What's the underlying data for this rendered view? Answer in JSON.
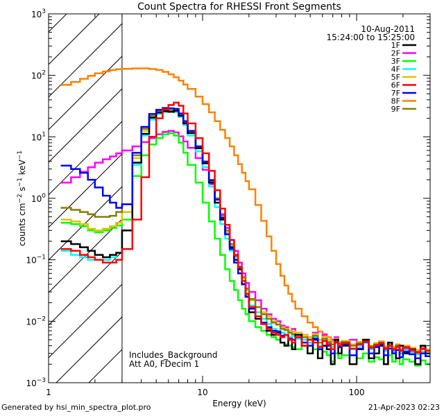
{
  "chart_data": {
    "type": "line",
    "title": "Count Spectra for RHESSI Front Segments",
    "xlabel": "Energy (keV)",
    "ylabel": "counts cm-2 s-1 keV-1",
    "ylabel_parts": [
      "counts cm",
      "−2",
      " s",
      "−1",
      " keV",
      "−1"
    ],
    "xscale": "log",
    "yscale": "log",
    "xlim": [
      1,
      300
    ],
    "ylim": [
      0.001,
      1000
    ],
    "xticks": [
      {
        "value": 1,
        "label": "1"
      },
      {
        "value": 10,
        "label": "10"
      },
      {
        "value": 100,
        "label": "100"
      }
    ],
    "yticks": [
      {
        "value": 0.001,
        "base": "10",
        "exp": "−3"
      },
      {
        "value": 0.01,
        "base": "10",
        "exp": "−2"
      },
      {
        "value": 0.1,
        "base": "10",
        "exp": "−1"
      },
      {
        "value": 1,
        "base": "10",
        "exp": "0"
      },
      {
        "value": 10,
        "base": "10",
        "exp": "1"
      },
      {
        "value": 100,
        "base": "10",
        "exp": "2"
      },
      {
        "value": 1000,
        "base": "10",
        "exp": "3"
      }
    ],
    "hatched_region": {
      "x_max": 3
    },
    "annotations": {
      "date": "10-Aug-2011",
      "time_range": "15:24:00 to 15:25:00",
      "note_background": "Includes_Background",
      "note_attenuator": "Att A0, FDecim 1"
    },
    "energy_bins": [
      1.2,
      1.4,
      1.6,
      1.8,
      2.0,
      2.25,
      2.5,
      2.75,
      3.0,
      3.5,
      4.0,
      4.5,
      5.0,
      5.5,
      6.0,
      6.5,
      7.0,
      7.5,
      8.0,
      9.0,
      10,
      11,
      12,
      13,
      14,
      15,
      16,
      17,
      18,
      19,
      20,
      22,
      24,
      26,
      28,
      30,
      32,
      34,
      36,
      38,
      40,
      44,
      48,
      52,
      56,
      60,
      64,
      68,
      72,
      76,
      80,
      90,
      100,
      110,
      120,
      130,
      140,
      150,
      160,
      170,
      180,
      190,
      200,
      220,
      240,
      260,
      280,
      300
    ],
    "series": [
      {
        "name": "1F",
        "color": "#000000",
        "values": [
          0.2,
          0.18,
          0.16,
          0.14,
          0.12,
          0.11,
          0.12,
          0.13,
          0.3,
          3.8,
          11.2,
          20.5,
          24.8,
          26.0,
          25.5,
          26.5,
          22.0,
          16.5,
          11.5,
          6.5,
          3.7,
          1.8,
          0.85,
          0.45,
          0.26,
          0.16,
          0.1,
          0.07,
          0.04,
          0.025,
          0.014,
          0.011,
          0.009,
          0.007,
          0.006,
          0.0065,
          0.0045,
          0.004,
          0.005,
          0.0035,
          0.006,
          0.004,
          0.003,
          0.005,
          0.0025,
          0.004,
          0.0035,
          0.002,
          0.005,
          0.003,
          0.004,
          0.002,
          0.0035,
          0.005,
          0.0025,
          0.003,
          0.004,
          0.002,
          0.0045,
          0.003,
          0.0025,
          0.004,
          0.003,
          0.0035,
          0.002,
          0.004,
          0.003,
          0.0025
        ]
      },
      {
        "name": "2F",
        "color": "#ff00ff",
        "values": [
          1.8,
          2.2,
          2.7,
          3.2,
          3.8,
          4.3,
          4.8,
          5.4,
          6.0,
          7.0,
          8.2,
          9.5,
          11.0,
          12.0,
          12.5,
          11.8,
          10.2,
          8.4,
          6.6,
          4.5,
          2.9,
          1.7,
          0.95,
          0.55,
          0.33,
          0.21,
          0.14,
          0.09,
          0.06,
          0.042,
          0.03,
          0.022,
          0.016,
          0.013,
          0.011,
          0.01,
          0.0085,
          0.008,
          0.007,
          0.0075,
          0.0065,
          0.006,
          0.0055,
          0.0065,
          0.005,
          0.006,
          0.0045,
          0.005,
          0.0055,
          0.004,
          0.0045,
          0.005,
          0.004,
          0.0045,
          0.0035,
          0.004,
          0.0045,
          0.0035,
          0.004,
          0.0033,
          0.0038,
          0.003,
          0.0036,
          0.0032,
          0.003,
          0.0035,
          0.003,
          0.0028
        ]
      },
      {
        "name": "3F",
        "color": "#00ff00",
        "values": [
          0.4,
          0.38,
          0.35,
          0.3,
          0.28,
          0.3,
          0.33,
          0.36,
          0.45,
          2.3,
          5.0,
          7.5,
          9.5,
          11.0,
          11.5,
          10.5,
          8.0,
          5.5,
          3.5,
          1.8,
          0.85,
          0.42,
          0.22,
          0.12,
          0.07,
          0.045,
          0.032,
          0.022,
          0.016,
          0.013,
          0.01,
          0.008,
          0.007,
          0.006,
          0.0055,
          0.005,
          0.0045,
          0.0042,
          0.004,
          0.0038,
          0.0035,
          0.004,
          0.003,
          0.0035,
          0.0025,
          0.0032,
          0.0028,
          0.0022,
          0.003,
          0.0025,
          0.0028,
          0.002,
          0.0025,
          0.003,
          0.0022,
          0.0026,
          0.0024,
          0.002,
          0.0028,
          0.0022,
          0.0025,
          0.002,
          0.0024,
          0.0022,
          0.0019,
          0.0023,
          0.002,
          0.0018
        ]
      },
      {
        "name": "4F",
        "color": "#00ffff",
        "values": [
          0.14,
          0.12,
          0.11,
          0.1,
          0.1,
          0.1,
          0.11,
          0.13,
          0.3,
          3.5,
          10.5,
          19.0,
          23.5,
          25.5,
          26.0,
          25.0,
          21.0,
          15.5,
          10.5,
          5.8,
          3.2,
          1.55,
          0.72,
          0.38,
          0.22,
          0.14,
          0.09,
          0.06,
          0.04,
          0.026,
          0.018,
          0.014,
          0.011,
          0.009,
          0.0075,
          0.007,
          0.0065,
          0.006,
          0.0055,
          0.0058,
          0.0052,
          0.005,
          0.0045,
          0.0055,
          0.004,
          0.0048,
          0.0042,
          0.0038,
          0.0045,
          0.004,
          0.0042,
          0.0035,
          0.004,
          0.0045,
          0.0035,
          0.0038,
          0.004,
          0.0033,
          0.0037,
          0.0032,
          0.0035,
          0.003,
          0.0034,
          0.0031,
          0.0029,
          0.0032,
          0.003,
          0.0028
        ]
      },
      {
        "name": "5F",
        "color": "#e6c000",
        "values": [
          0.45,
          0.42,
          0.38,
          0.32,
          0.3,
          0.32,
          0.35,
          0.4,
          0.6,
          4.5,
          12.5,
          21.0,
          25.5,
          27.0,
          26.5,
          26.0,
          22.5,
          17.0,
          12.0,
          6.8,
          3.9,
          1.9,
          0.95,
          0.5,
          0.28,
          0.17,
          0.11,
          0.075,
          0.05,
          0.032,
          0.022,
          0.017,
          0.014,
          0.012,
          0.01,
          0.009,
          0.008,
          0.0075,
          0.007,
          0.0068,
          0.0065,
          0.006,
          0.0055,
          0.0062,
          0.005,
          0.0056,
          0.005,
          0.0046,
          0.0052,
          0.0045,
          0.0048,
          0.0042,
          0.0046,
          0.005,
          0.004,
          0.0044,
          0.0046,
          0.0039,
          0.0043,
          0.0038,
          0.0041,
          0.0036,
          0.004,
          0.0037,
          0.0034,
          0.0038,
          0.0035,
          0.0033
        ]
      },
      {
        "name": "6F",
        "color": "#ff0000",
        "values": [
          0.15,
          0.14,
          0.12,
          0.11,
          0.1,
          0.09,
          0.09,
          0.1,
          0.15,
          0.45,
          2.2,
          10.0,
          20.0,
          28.0,
          33.0,
          36.0,
          32.0,
          24.0,
          16.5,
          9.5,
          5.4,
          2.8,
          1.35,
          0.68,
          0.37,
          0.21,
          0.12,
          0.075,
          0.045,
          0.028,
          0.017,
          0.012,
          0.009,
          0.0075,
          0.0065,
          0.006,
          0.0055,
          0.006,
          0.005,
          0.0045,
          0.0055,
          0.004,
          0.005,
          0.0045,
          0.0038,
          0.0048,
          0.0042,
          0.0035,
          0.0046,
          0.004,
          0.0044,
          0.0036,
          0.0042,
          0.0047,
          0.0037,
          0.0041,
          0.0044,
          0.0036,
          0.004,
          0.0035,
          0.0039,
          0.0033,
          0.0038,
          0.0034,
          0.0031,
          0.0036,
          0.0033,
          0.003
        ]
      },
      {
        "name": "7F",
        "color": "#0000ff",
        "values": [
          3.4,
          3.0,
          2.6,
          2.0,
          1.5,
          1.1,
          0.85,
          0.7,
          0.8,
          5.5,
          14.5,
          23.5,
          27.5,
          29.5,
          29.0,
          28.5,
          24.0,
          18.0,
          12.5,
          7.0,
          3.9,
          1.95,
          0.95,
          0.48,
          0.26,
          0.15,
          0.09,
          0.06,
          0.04,
          0.025,
          0.016,
          0.012,
          0.0095,
          0.008,
          0.007,
          0.0068,
          0.0058,
          0.006,
          0.0052,
          0.005,
          0.0055,
          0.0045,
          0.004,
          0.0052,
          0.0035,
          0.0048,
          0.004,
          0.003,
          0.0045,
          0.0038,
          0.0042,
          0.0028,
          0.0036,
          0.0046,
          0.003,
          0.0038,
          0.0042,
          0.0028,
          0.0036,
          0.003,
          0.0034,
          0.0026,
          0.0032,
          0.0029,
          0.0025,
          0.003,
          0.0027,
          0.0024
        ]
      },
      {
        "name": "8F",
        "color": "#ff8000",
        "values": [
          70,
          78,
          88,
          98,
          108,
          116,
          122,
          126,
          128,
          130,
          130,
          127,
          122,
          114,
          104,
          93,
          82,
          71,
          60,
          45,
          34,
          25,
          18,
          13,
          9.5,
          7.0,
          5.0,
          3.6,
          2.6,
          1.9,
          1.4,
          0.78,
          0.43,
          0.24,
          0.14,
          0.085,
          0.055,
          0.038,
          0.028,
          0.021,
          0.016,
          0.012,
          0.0095,
          0.008,
          0.0068,
          0.0062,
          0.0055,
          0.005,
          0.0052,
          0.0045,
          0.0048,
          0.0042,
          0.0046,
          0.005,
          0.004,
          0.0044,
          0.0047,
          0.0039,
          0.0043,
          0.0038,
          0.0042,
          0.0036,
          0.004,
          0.0037,
          0.0034,
          0.0038,
          0.0035,
          0.0033
        ]
      },
      {
        "name": "9F",
        "color": "#808000",
        "values": [
          0.7,
          0.65,
          0.6,
          0.55,
          0.5,
          0.5,
          0.52,
          0.6,
          0.8,
          5.0,
          13.5,
          22.0,
          26.0,
          27.5,
          27.0,
          26.5,
          23.0,
          17.5,
          12.3,
          7.0,
          4.0,
          2.0,
          1.0,
          0.52,
          0.3,
          0.18,
          0.115,
          0.078,
          0.052,
          0.034,
          0.023,
          0.017,
          0.013,
          0.011,
          0.0095,
          0.0088,
          0.0075,
          0.0072,
          0.0065,
          0.0062,
          0.006,
          0.0055,
          0.005,
          0.0058,
          0.0045,
          0.0052,
          0.0046,
          0.0042,
          0.0049,
          0.0043,
          0.0046,
          0.004,
          0.0044,
          0.0048,
          0.0039,
          0.0042,
          0.0045,
          0.0037,
          0.0041,
          0.0036,
          0.004,
          0.0034,
          0.0038,
          0.0035,
          0.0032,
          0.0036,
          0.0033,
          0.0031
        ]
      }
    ]
  },
  "footer": {
    "generated_by": "Generated by hsi_min_spectra_plot.pro",
    "timestamp": "21-Apr-2023 02:23"
  }
}
